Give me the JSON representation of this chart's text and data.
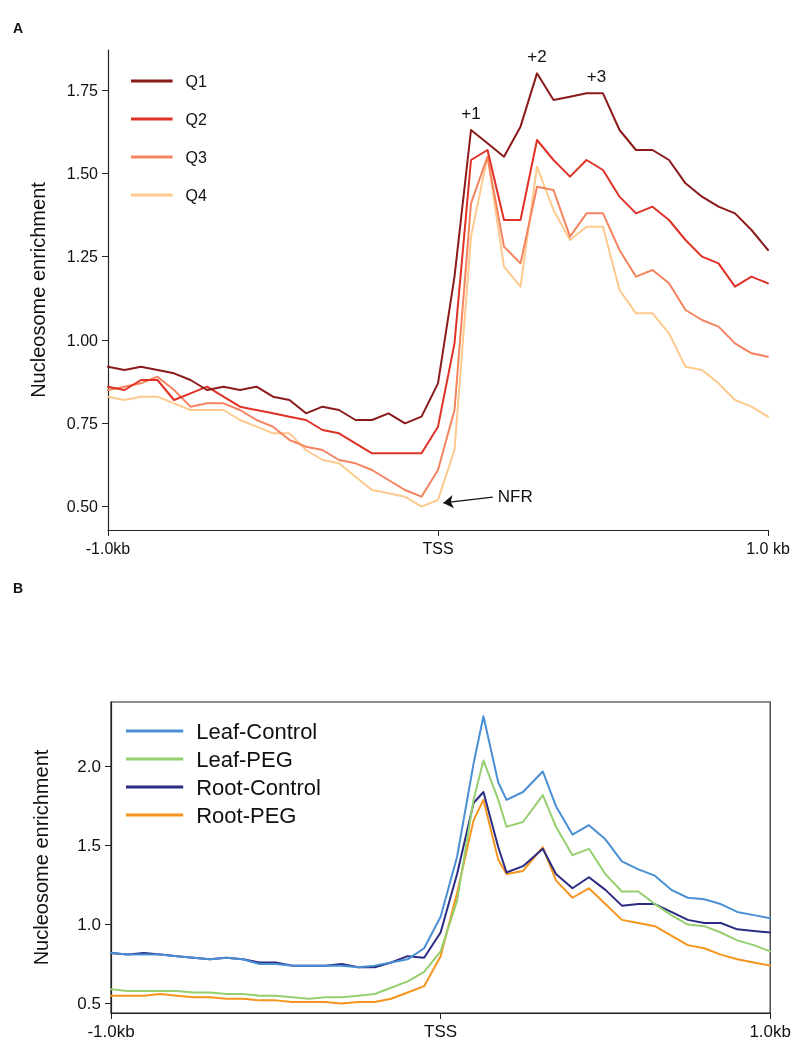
{
  "chart_data": [
    {
      "type": "line",
      "title": "A",
      "ylabel": "Nucleosome enrichment",
      "legend": "top left",
      "marker": "none",
      "line_style": "solid",
      "x": [
        -1,
        -0.95,
        -0.9,
        -0.85,
        -0.8,
        -0.75,
        -0.7,
        -0.65,
        -0.6,
        -0.55,
        -0.5,
        -0.45,
        -0.4,
        -0.35,
        -0.3,
        -0.25,
        -0.2,
        -0.15,
        -0.1,
        -0.05,
        0,
        0.05,
        0.1,
        0.15,
        0.2,
        0.25,
        0.3,
        0.35,
        0.4,
        0.45,
        0.5,
        0.55,
        0.6,
        0.65,
        0.7,
        0.75,
        0.8,
        0.85,
        0.9,
        0.95,
        1
      ],
      "xlim": [
        -1,
        1
      ],
      "xticks": [
        {
          "value": -1,
          "label": "-1.0kb"
        },
        {
          "value": 0,
          "label": "TSS"
        },
        {
          "value": 1,
          "label": "1.0 kb"
        }
      ],
      "ylim": [
        0.43,
        1.87
      ],
      "yticks": [
        {
          "value": 0.5,
          "label": "0.50"
        },
        {
          "value": 0.75,
          "label": "0.75"
        },
        {
          "value": 1,
          "label": "1.00"
        },
        {
          "value": 1.25,
          "label": "1.25"
        },
        {
          "value": 1.5,
          "label": "1.50"
        },
        {
          "value": 1.75,
          "label": "1.75"
        }
      ],
      "series": [
        {
          "name": "Q1",
          "color": "#8b1a1a",
          "values": [
            0.92,
            0.91,
            0.92,
            0.91,
            0.9,
            0.88,
            0.85,
            0.86,
            0.85,
            0.86,
            0.83,
            0.82,
            0.78,
            0.8,
            0.79,
            0.76,
            0.76,
            0.78,
            0.75,
            0.77,
            0.87,
            1.19,
            1.63,
            1.59,
            1.55,
            1.64,
            1.8,
            1.72,
            1.73,
            1.74,
            1.74,
            1.63,
            1.57,
            1.57,
            1.54,
            1.47,
            1.43,
            1.4,
            1.38,
            1.33,
            1.27
          ]
        },
        {
          "name": "Q2",
          "color": "#e03127",
          "values": [
            0.86,
            0.85,
            0.88,
            0.88,
            0.82,
            0.84,
            0.86,
            0.83,
            0.8,
            0.79,
            0.78,
            0.77,
            0.76,
            0.73,
            0.72,
            0.69,
            0.66,
            0.66,
            0.66,
            0.66,
            0.74,
            0.99,
            1.54,
            1.57,
            1.36,
            1.36,
            1.6,
            1.54,
            1.49,
            1.54,
            1.51,
            1.43,
            1.38,
            1.4,
            1.36,
            1.3,
            1.25,
            1.23,
            1.16,
            1.19,
            1.17
          ]
        },
        {
          "name": "Q3",
          "color": "#f4845f",
          "values": [
            0.85,
            0.86,
            0.87,
            0.89,
            0.85,
            0.8,
            0.81,
            0.81,
            0.79,
            0.76,
            0.74,
            0.7,
            0.68,
            0.67,
            0.64,
            0.63,
            0.61,
            0.58,
            0.55,
            0.53,
            0.61,
            0.79,
            1.41,
            1.55,
            1.28,
            1.23,
            1.46,
            1.45,
            1.31,
            1.38,
            1.38,
            1.27,
            1.19,
            1.21,
            1.17,
            1.09,
            1.06,
            1.04,
            0.99,
            0.96,
            0.95
          ]
        },
        {
          "name": "Q4",
          "color": "#fdc98d",
          "values": [
            0.83,
            0.82,
            0.83,
            0.83,
            0.81,
            0.79,
            0.79,
            0.79,
            0.76,
            0.74,
            0.72,
            0.72,
            0.67,
            0.64,
            0.63,
            0.59,
            0.55,
            0.54,
            0.53,
            0.5,
            0.52,
            0.67,
            1.31,
            1.55,
            1.22,
            1.16,
            1.52,
            1.39,
            1.3,
            1.34,
            1.34,
            1.15,
            1.08,
            1.08,
            1.02,
            0.92,
            0.91,
            0.87,
            0.82,
            0.8,
            0.77
          ]
        }
      ],
      "annotations": [
        {
          "text": "+1",
          "x": 0.1,
          "y": 1.63
        },
        {
          "text": "+2",
          "x": 0.3,
          "y": 1.8
        },
        {
          "text": "+3",
          "x": 0.48,
          "y": 1.74
        },
        {
          "text": "NFR",
          "x": 0,
          "y": 0.52
        }
      ]
    },
    {
      "type": "line",
      "title": "B",
      "ylabel": "Nucleosome enrichment",
      "legend": "top left",
      "marker": "none",
      "line_style": "solid",
      "x": [
        -1,
        -0.95,
        -0.9,
        -0.85,
        -0.8,
        -0.75,
        -0.7,
        -0.65,
        -0.6,
        -0.55,
        -0.5,
        -0.45,
        -0.4,
        -0.35,
        -0.3,
        -0.25,
        -0.2,
        -0.15,
        -0.1,
        -0.05,
        0,
        0.05,
        0.1,
        0.13,
        0.175,
        0.2,
        0.25,
        0.31,
        0.35,
        0.4,
        0.45,
        0.5,
        0.55,
        0.6,
        0.65,
        0.7,
        0.75,
        0.8,
        0.85,
        0.9,
        0.95,
        1
      ],
      "xlim": [
        -1,
        1
      ],
      "xticks": [
        {
          "value": -1,
          "label": "-1.0kb"
        },
        {
          "value": 0,
          "label": "TSS"
        },
        {
          "value": 1,
          "label": "1.0kb"
        }
      ],
      "ylim": [
        0.44,
        2.41
      ],
      "yticks": [
        {
          "value": 0.5,
          "label": "0.5"
        },
        {
          "value": 1,
          "label": "1.0"
        },
        {
          "value": 1.5,
          "label": "1.5"
        },
        {
          "value": 2,
          "label": "2.0"
        }
      ],
      "series": [
        {
          "name": "Leaf-Control",
          "color": "#4a8fd4",
          "values": [
            0.82,
            0.81,
            0.81,
            0.81,
            0.8,
            0.79,
            0.78,
            0.79,
            0.78,
            0.75,
            0.75,
            0.74,
            0.74,
            0.74,
            0.74,
            0.73,
            0.74,
            0.76,
            0.78,
            0.85,
            1.05,
            1.43,
            2.02,
            2.32,
            1.9,
            1.79,
            1.84,
            1.97,
            1.75,
            1.57,
            1.63,
            1.54,
            1.4,
            1.35,
            1.31,
            1.22,
            1.17,
            1.16,
            1.13,
            1.08,
            1.06,
            1.04
          ]
        },
        {
          "name": "Leaf-PEG",
          "color": "#95cf6f",
          "values": [
            0.59,
            0.58,
            0.58,
            0.58,
            0.58,
            0.57,
            0.57,
            0.56,
            0.56,
            0.55,
            0.55,
            0.54,
            0.53,
            0.54,
            0.54,
            0.55,
            0.56,
            0.6,
            0.64,
            0.7,
            0.83,
            1.15,
            1.79,
            2.04,
            1.79,
            1.62,
            1.65,
            1.82,
            1.62,
            1.44,
            1.48,
            1.32,
            1.21,
            1.21,
            1.13,
            1.06,
            1.0,
            0.99,
            0.95,
            0.9,
            0.87,
            0.83
          ]
        },
        {
          "name": "Root-Control",
          "color": "#2b2b83",
          "values": [
            0.82,
            0.81,
            0.82,
            0.81,
            0.8,
            0.79,
            0.78,
            0.79,
            0.78,
            0.76,
            0.76,
            0.74,
            0.74,
            0.74,
            0.75,
            0.73,
            0.73,
            0.76,
            0.8,
            0.79,
            0.95,
            1.32,
            1.77,
            1.84,
            1.49,
            1.33,
            1.37,
            1.48,
            1.32,
            1.23,
            1.3,
            1.22,
            1.12,
            1.13,
            1.13,
            1.08,
            1.03,
            1.01,
            1.01,
            0.97,
            0.96,
            0.95
          ]
        },
        {
          "name": "Root-PEG",
          "color": "#f7941d",
          "values": [
            0.55,
            0.55,
            0.55,
            0.56,
            0.55,
            0.54,
            0.54,
            0.53,
            0.53,
            0.52,
            0.52,
            0.51,
            0.51,
            0.51,
            0.5,
            0.51,
            0.51,
            0.53,
            0.57,
            0.61,
            0.8,
            1.2,
            1.66,
            1.79,
            1.41,
            1.32,
            1.34,
            1.49,
            1.28,
            1.17,
            1.23,
            1.13,
            1.03,
            1.01,
            0.99,
            0.93,
            0.87,
            0.85,
            0.81,
            0.78,
            0.76,
            0.74
          ]
        }
      ]
    }
  ]
}
